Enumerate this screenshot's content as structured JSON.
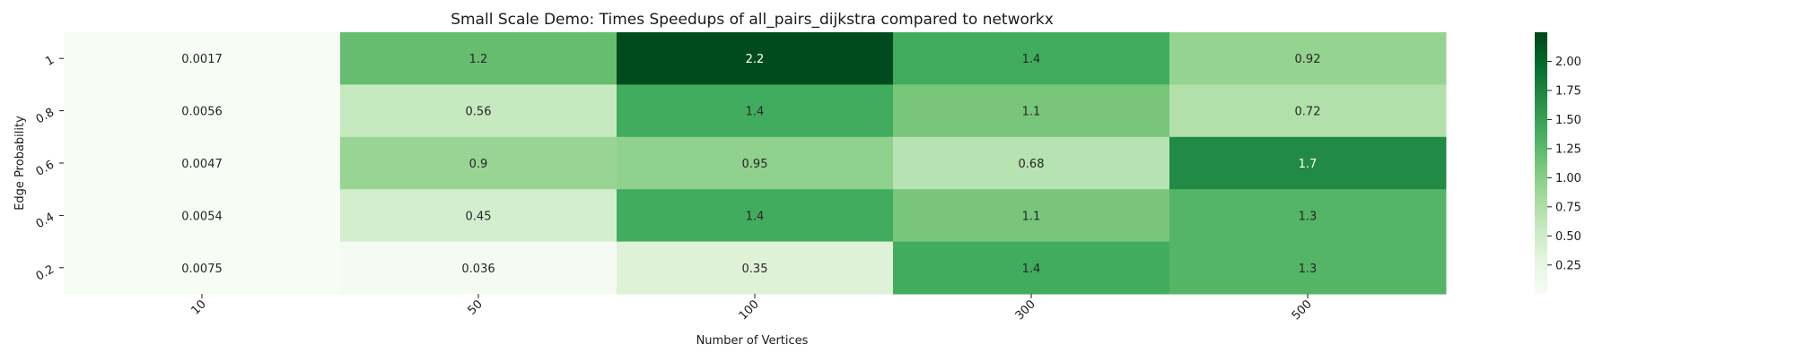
{
  "chart_data": {
    "type": "heatmap",
    "title": "Small Scale Demo: Times Speedups of all_pairs_dijkstra compared to networkx",
    "xlabel": "Number of Vertices",
    "ylabel": "Edge Probability",
    "x_categories": [
      "10",
      "50",
      "100",
      "300",
      "500"
    ],
    "y_categories": [
      "1",
      "0.8",
      "0.6",
      "0.4",
      "0.2"
    ],
    "values": [
      [
        0.0017,
        1.2,
        2.2,
        1.4,
        0.92
      ],
      [
        0.0056,
        0.56,
        1.4,
        1.1,
        0.72
      ],
      [
        0.0047,
        0.9,
        0.95,
        0.68,
        1.7
      ],
      [
        0.0054,
        0.45,
        1.4,
        1.1,
        1.3
      ],
      [
        0.0075,
        0.036,
        0.35,
        1.4,
        1.3
      ]
    ],
    "cell_labels": [
      [
        "0.0017",
        "1.2",
        "2.2",
        "1.4",
        "0.92"
      ],
      [
        "0.0056",
        "0.56",
        "1.4",
        "1.1",
        "0.72"
      ],
      [
        "0.0047",
        "0.9",
        "0.95",
        "0.68",
        "1.7"
      ],
      [
        "0.0054",
        "0.45",
        "1.4",
        "1.1",
        "1.3"
      ],
      [
        "0.0075",
        "0.036",
        "0.35",
        "1.4",
        "1.3"
      ]
    ],
    "colorbar": {
      "colormap": "Greens",
      "range": [
        0.0017,
        2.25
      ],
      "ticks": [
        "0.25",
        "0.50",
        "0.75",
        "1.00",
        "1.25",
        "1.50",
        "1.75",
        "2.00"
      ]
    },
    "colors": {
      "low": "#f7fcf5",
      "high": "#00441b"
    }
  }
}
